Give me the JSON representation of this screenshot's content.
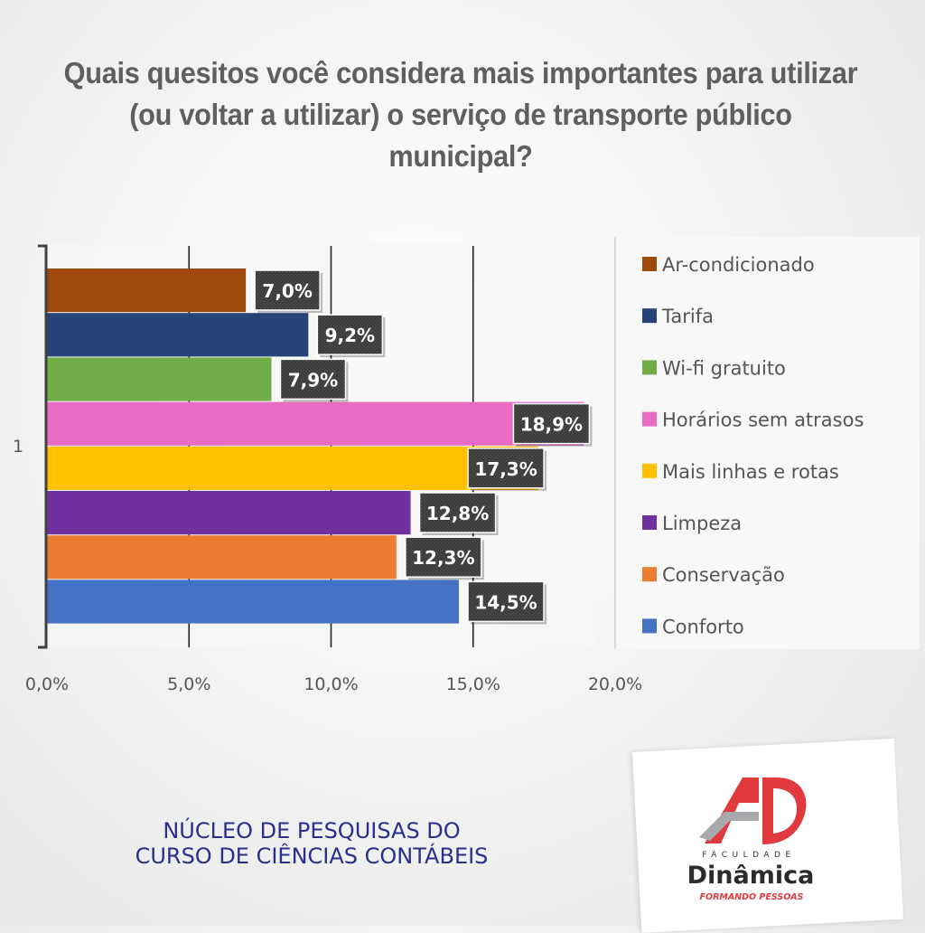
{
  "title": "Quais quesitos você considera mais importantes para utilizar (ou voltar a utilizar) o serviço de transporte público municipal?",
  "chart_data": {
    "type": "bar",
    "orientation": "horizontal",
    "category_label": "1",
    "xlim": [
      0,
      20
    ],
    "x_ticks": [
      "0,0%",
      "5,0%",
      "10,0%",
      "15,0%",
      "20,0%"
    ],
    "grid": true,
    "legend_position": "right",
    "series": [
      {
        "name": "Ar-condicionado",
        "value": 7.0,
        "label": "7,0%",
        "color": "#9e480e"
      },
      {
        "name": "Tarifa",
        "value": 9.2,
        "label": "9,2%",
        "color": "#264478"
      },
      {
        "name": "Wi-fi gratuito",
        "value": 7.9,
        "label": "7,9%",
        "color": "#70ad47"
      },
      {
        "name": "Horários sem atrasos",
        "value": 18.9,
        "label": "18,9%",
        "color": "#e96bc4"
      },
      {
        "name": "Mais linhas e rotas",
        "value": 17.3,
        "label": "17,3%",
        "color": "#ffc000"
      },
      {
        "name": "Limpeza",
        "value": 12.8,
        "label": "12,8%",
        "color": "#7030a0"
      },
      {
        "name": "Conservação",
        "value": 12.3,
        "label": "12,3%",
        "color": "#ed7d31"
      },
      {
        "name": "Conforto",
        "value": 14.5,
        "label": "14,5%",
        "color": "#4472c4"
      }
    ]
  },
  "footer": {
    "line1": "NÚCLEO DE PESQUISAS DO",
    "line2": "CURSO DE CIÊNCIAS CONTÁBEIS"
  },
  "logo": {
    "eyebrow": "FACULDADE",
    "name": "Dinâmica",
    "tagline": "FORMANDO PESSOAS",
    "red": "#e03a3e",
    "gray": "#a7a9ac"
  }
}
